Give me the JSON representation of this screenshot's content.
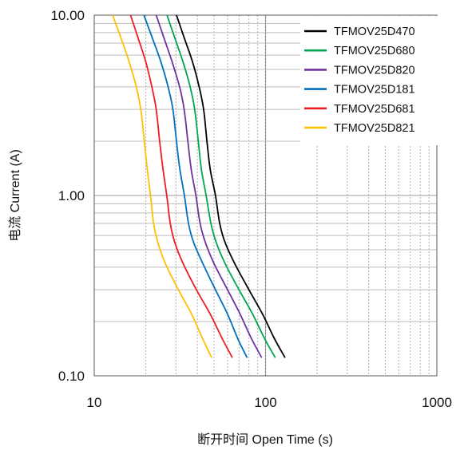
{
  "chart_data": {
    "type": "line",
    "title": "",
    "xlabel": "断开时间 Open Time (s)",
    "ylabel": "电流 Current (A)",
    "xscale": "log",
    "yscale": "log",
    "xlim": [
      10,
      1000
    ],
    "ylim": [
      0.1,
      10
    ],
    "x_ticks": [
      "10",
      "100",
      "1000"
    ],
    "y_ticks": [
      "0.10",
      "1.00",
      "10.00"
    ],
    "grid": true,
    "legend_position": "top-right",
    "series": [
      {
        "name": "TFMOV25D470",
        "color": "#000000",
        "points": [
          [
            30.2,
            10
          ],
          [
            33.5,
            7.5
          ],
          [
            37.5,
            5.5
          ],
          [
            41,
            4.0
          ],
          [
            43.5,
            3.0
          ],
          [
            45.5,
            2.0
          ],
          [
            47.5,
            1.4
          ],
          [
            51,
            1.0
          ],
          [
            54,
            0.7
          ],
          [
            58,
            0.55
          ],
          [
            66,
            0.42
          ],
          [
            80,
            0.3
          ],
          [
            96,
            0.22
          ],
          [
            113,
            0.16
          ],
          [
            130,
            0.126
          ]
        ]
      },
      {
        "name": "TFMOV25D680",
        "color": "#00a651",
        "points": [
          [
            26.6,
            10
          ],
          [
            29.5,
            7.5
          ],
          [
            33,
            5.5
          ],
          [
            36.3,
            4.0
          ],
          [
            38.6,
            3.0
          ],
          [
            40.5,
            2.0
          ],
          [
            42.2,
            1.4
          ],
          [
            45,
            1.0
          ],
          [
            48,
            0.7
          ],
          [
            51.5,
            0.55
          ],
          [
            58,
            0.42
          ],
          [
            70,
            0.3
          ],
          [
            84,
            0.22
          ],
          [
            99,
            0.16
          ],
          [
            114,
            0.126
          ]
        ]
      },
      {
        "name": "TFMOV25D820",
        "color": "#7030a0",
        "points": [
          [
            23,
            10
          ],
          [
            25.5,
            7.5
          ],
          [
            28.5,
            5.5
          ],
          [
            31.5,
            4.0
          ],
          [
            33.5,
            3.0
          ],
          [
            35.2,
            2.0
          ],
          [
            36.8,
            1.4
          ],
          [
            39.2,
            1.0
          ],
          [
            41.5,
            0.7
          ],
          [
            44.5,
            0.55
          ],
          [
            50,
            0.42
          ],
          [
            60,
            0.3
          ],
          [
            71,
            0.22
          ],
          [
            83,
            0.16
          ],
          [
            95,
            0.126
          ]
        ]
      },
      {
        "name": "TFMOV25D181",
        "color": "#0070c0",
        "points": [
          [
            19.5,
            10
          ],
          [
            21.8,
            7.5
          ],
          [
            24.5,
            5.5
          ],
          [
            27,
            4.0
          ],
          [
            28.8,
            3.0
          ],
          [
            30.2,
            2.0
          ],
          [
            31.6,
            1.4
          ],
          [
            33.6,
            1.0
          ],
          [
            35.5,
            0.7
          ],
          [
            38,
            0.55
          ],
          [
            43,
            0.42
          ],
          [
            51,
            0.3
          ],
          [
            60,
            0.22
          ],
          [
            69,
            0.16
          ],
          [
            78,
            0.126
          ]
        ]
      },
      {
        "name": "TFMOV25D681",
        "color": "#ee1c25",
        "points": [
          [
            16.3,
            10
          ],
          [
            18,
            7.5
          ],
          [
            20,
            5.5
          ],
          [
            21.7,
            4.0
          ],
          [
            23,
            3.0
          ],
          [
            24.1,
            2.0
          ],
          [
            25.2,
            1.4
          ],
          [
            26.5,
            1.0
          ],
          [
            27.8,
            0.7
          ],
          [
            29.5,
            0.55
          ],
          [
            33,
            0.42
          ],
          [
            39.5,
            0.3
          ],
          [
            47.5,
            0.22
          ],
          [
            56,
            0.16
          ],
          [
            64,
            0.126
          ]
        ]
      },
      {
        "name": "TFMOV25D821",
        "color": "#ffc000",
        "points": [
          [
            12.8,
            10
          ],
          [
            14.3,
            7.5
          ],
          [
            16,
            5.5
          ],
          [
            17.6,
            4.0
          ],
          [
            18.7,
            3.0
          ],
          [
            19.6,
            2.0
          ],
          [
            20.4,
            1.4
          ],
          [
            21.3,
            1.0
          ],
          [
            22.2,
            0.7
          ],
          [
            23.5,
            0.55
          ],
          [
            26,
            0.42
          ],
          [
            31,
            0.3
          ],
          [
            37,
            0.22
          ],
          [
            43,
            0.16
          ],
          [
            48.5,
            0.126
          ]
        ]
      }
    ]
  }
}
